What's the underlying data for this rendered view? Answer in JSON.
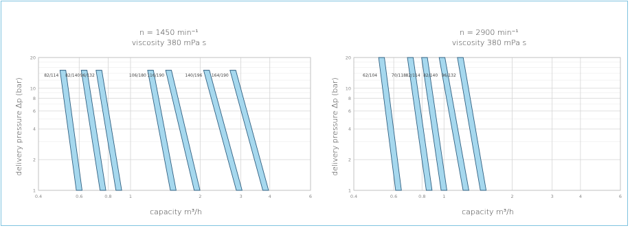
{
  "colors": {
    "frame": "#7ec3e0",
    "band_fill": "#a6d8ee",
    "band_stroke": "#2f5f80",
    "grid": "#d4d4d4"
  },
  "chart_data": [
    {
      "type": "line",
      "title": "n = 1450 min⁻¹",
      "subtitle": "viscosity 380 mPa s",
      "xlabel": "capacity m³/h",
      "ylabel": "delivery pressure Δp (bar)",
      "x_scale": "log",
      "y_scale": "log",
      "xlim": [
        0.4,
        6
      ],
      "ylim": [
        1,
        20
      ],
      "x_ticks": [
        "0.4",
        "0.6",
        "0.8",
        "1",
        "2",
        "3",
        "4",
        "6"
      ],
      "y_ticks": [
        "20",
        "10",
        "8",
        "6",
        "4",
        "2",
        "1"
      ],
      "grid": true,
      "series": [
        {
          "name": "82/114",
          "x": [
            0.51,
            0.6
          ],
          "y": [
            15,
            1
          ]
        },
        {
          "name": "82/140",
          "x": [
            0.63,
            0.76
          ],
          "y": [
            15,
            1
          ]
        },
        {
          "name": "96/132",
          "x": [
            0.73,
            0.89
          ],
          "y": [
            15,
            1
          ]
        },
        {
          "name": "106/180",
          "x": [
            1.22,
            1.53
          ],
          "y": [
            15,
            1
          ]
        },
        {
          "name": "116/190",
          "x": [
            1.46,
            1.94
          ],
          "y": [
            15,
            1
          ]
        },
        {
          "name": "140/196",
          "x": [
            2.13,
            2.95
          ],
          "y": [
            15,
            1
          ]
        },
        {
          "name": "164/190",
          "x": [
            2.77,
            3.84
          ],
          "y": [
            15,
            1
          ]
        }
      ]
    },
    {
      "type": "line",
      "title": "n = 2900  min⁻¹",
      "subtitle": "viscosity 380 mPa s",
      "xlabel": "capacity m³/h",
      "ylabel": "delivery pressure Δp (bar)",
      "x_scale": "log",
      "y_scale": "log",
      "xlim": [
        0.4,
        6
      ],
      "ylim": [
        1,
        20
      ],
      "x_ticks": [
        "0.4",
        "0.6",
        "0.8",
        "1",
        "2",
        "3",
        "4",
        "6"
      ],
      "y_ticks": [
        "20",
        "10",
        "8",
        "6",
        "4",
        "2",
        "1"
      ],
      "grid": true,
      "series": [
        {
          "name": "62/104",
          "x": [
            0.53,
            0.63
          ],
          "y": [
            20,
            1
          ]
        },
        {
          "name": "70/118",
          "x": [
            0.71,
            0.86
          ],
          "y": [
            20,
            1
          ]
        },
        {
          "name": "82/114",
          "x": [
            0.82,
            1.0
          ],
          "y": [
            20,
            1
          ]
        },
        {
          "name": "82/140",
          "x": [
            0.98,
            1.25
          ],
          "y": [
            20,
            1
          ]
        },
        {
          "name": "96/132",
          "x": [
            1.18,
            1.49
          ],
          "y": [
            20,
            1
          ]
        }
      ]
    }
  ]
}
